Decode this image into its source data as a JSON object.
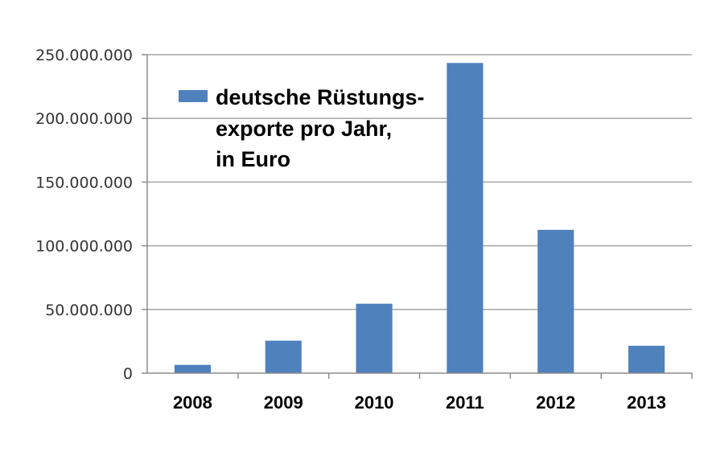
{
  "chart_data": {
    "type": "bar",
    "categories": [
      "2008",
      "2009",
      "2010",
      "2011",
      "2012",
      "2013"
    ],
    "series": [
      {
        "name": "deutsche Rüstungs- exporte pro Jahr, in Euro",
        "legend_lines": [
          "deutsche Rüstungs-",
          "exporte pro Jahr,",
          "in Euro"
        ],
        "values": [
          6500000,
          25500000,
          54500000,
          243500000,
          112500000,
          21500000
        ]
      }
    ],
    "y_ticks": [
      "0",
      "50.000.000",
      "100.000.000",
      "150.000.000",
      "200.000.000",
      "250.000.000"
    ],
    "ylim": [
      0,
      250000000
    ],
    "grid": true,
    "legend_position": "top-left",
    "colors": {
      "bar": "#4F81BD",
      "grid": "#A6A6A6",
      "axis": "#8C8C8C"
    }
  }
}
